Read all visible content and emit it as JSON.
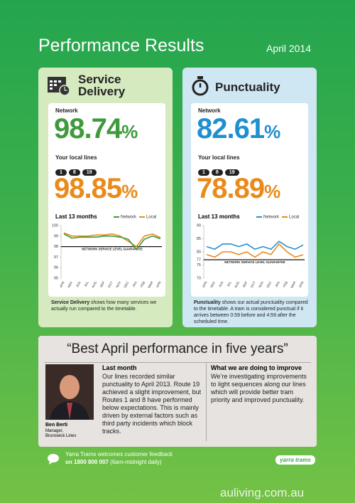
{
  "header": {
    "title": "Performance Results",
    "date": "April 2014"
  },
  "panels": [
    {
      "title_line1": "Service",
      "title_line2": "Delivery",
      "network_label": "Network",
      "network_value": "98.74",
      "network_unit": "%",
      "local_label": "Your local lines",
      "routes": [
        "1",
        "8",
        "19"
      ],
      "local_value": "98.85",
      "local_unit": "%",
      "note_bold": "Service Delivery",
      "note": " shows how many services we actually run compared to the timetable."
    },
    {
      "title": "Punctuality",
      "network_label": "Network",
      "network_value": "82.61",
      "network_unit": "%",
      "local_label": "Your local lines",
      "routes": [
        "1",
        "8",
        "19"
      ],
      "local_value": "78.89",
      "local_unit": "%",
      "note_bold": "Punctuality",
      "note": " shows our actual punctuality compared to the timetable. A tram is considered punctual if it arrives between 0:59 before and 4:59 after the scheduled time."
    }
  ],
  "chart_data": [
    {
      "type": "line",
      "title": "Last 13 months",
      "categories": [
        "APR",
        "MAY",
        "JUN",
        "JUL",
        "AUG",
        "SEP",
        "OCT",
        "NOV",
        "DEC",
        "JAN",
        "FEB",
        "MAR",
        "APR"
      ],
      "series": [
        {
          "name": "Network",
          "color": "#3f9a3c",
          "values": [
            99.2,
            98.8,
            98.9,
            98.9,
            98.9,
            99.0,
            99.0,
            98.9,
            98.7,
            97.7,
            98.7,
            99.0,
            98.74
          ]
        },
        {
          "name": "Local",
          "color": "#e98a1b",
          "values": [
            99.3,
            99.0,
            99.0,
            99.0,
            99.1,
            99.1,
            99.2,
            99.0,
            98.5,
            98.0,
            99.0,
            99.2,
            98.85
          ]
        }
      ],
      "ylim": [
        95,
        100
      ],
      "yticks": [
        95,
        96,
        97,
        98,
        99,
        100
      ],
      "grid": false,
      "guarantee": {
        "value": 98,
        "label": "NETWORK SERVICE LEVEL GUARANTEE"
      }
    },
    {
      "type": "line",
      "title": "Last 13 months",
      "categories": [
        "APR",
        "MAY",
        "JUN",
        "JUL",
        "AUG",
        "SEP",
        "OCT",
        "NOV",
        "DEC",
        "JAN",
        "FEB",
        "MAR",
        "APR"
      ],
      "series": [
        {
          "name": "Network",
          "color": "#2a8fd0",
          "values": [
            82,
            81,
            83,
            83,
            82,
            83,
            81,
            82,
            81,
            84,
            82,
            81,
            82.61
          ]
        },
        {
          "name": "Local",
          "color": "#e98a1b",
          "values": [
            79,
            78,
            80,
            80,
            79,
            80,
            78,
            80,
            79,
            83,
            80,
            78,
            78.89
          ]
        }
      ],
      "ylim": [
        70,
        90
      ],
      "yticks": [
        70,
        75,
        77,
        80,
        85,
        90
      ],
      "grid": false,
      "guarantee": {
        "value": 77,
        "label": "NETWORK SERVICE LEVEL GUARANTEE"
      }
    }
  ],
  "quote": {
    "headline": "“Best April performance in five years”",
    "person_name": "Ben Berti",
    "person_role_line1": "Manager,",
    "person_role_line2": "Brunswick Lines",
    "last_month_title": "Last month",
    "last_month_text": "Our lines recorded similar punctuality to April 2013. Route 19 achieved a slight improvement, but Routes 1 and 8 have performed below expectations. This is mainly driven by external factors such as third party incidents which block tracks.",
    "improve_title": "What we are doing to improve",
    "improve_text": "We’re investigating improvements to light sequences along our lines which will provide better tram priority and improved punctuality."
  },
  "footer": {
    "feedback_line1": "Yarra Trams welcomes customer feedback",
    "feedback_line2_bold": "on 1800 800 007",
    "feedback_line2": " (6am-midnight daily)",
    "logo": "yarra trams",
    "watermark": "auliving.com.au"
  }
}
